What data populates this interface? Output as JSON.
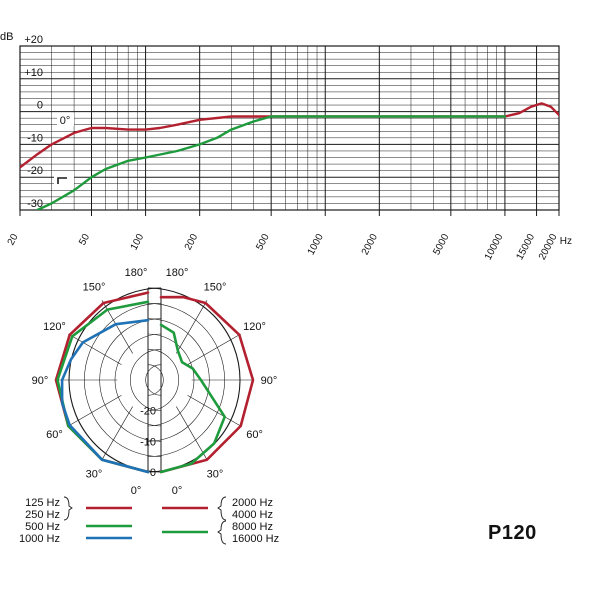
{
  "model": "P120",
  "colors": {
    "red": "#b3202f",
    "green": "#1e9b3c",
    "blue": "#1f72b5",
    "grid": "#1a1a1a"
  },
  "chart_data": [
    {
      "type": "line",
      "scale": "log-x",
      "xlim": [
        20,
        20000
      ],
      "ylim": [
        -30,
        20
      ],
      "yunit": "dB",
      "xunit": "Hz",
      "y_ticks": [
        {
          "value": 20,
          "label": "+20"
        },
        {
          "value": 10,
          "label": "+10"
        },
        {
          "value": 0,
          "label": "0"
        },
        {
          "value": -10,
          "label": "-10"
        },
        {
          "value": -20,
          "label": "-20"
        },
        {
          "value": -30,
          "label": "-30"
        }
      ],
      "x_ticks": [
        {
          "value": 20,
          "label": "20"
        },
        {
          "value": 50,
          "label": "50"
        },
        {
          "value": 100,
          "label": "100"
        },
        {
          "value": 200,
          "label": "200"
        },
        {
          "value": 500,
          "label": "500"
        },
        {
          "value": 1000,
          "label": "1000"
        },
        {
          "value": 2000,
          "label": "2000"
        },
        {
          "value": 5000,
          "label": "5000"
        },
        {
          "value": 10000,
          "label": "10000"
        },
        {
          "value": 15000,
          "label": "15000"
        },
        {
          "value": 20000,
          "label": "20000"
        }
      ],
      "angle_label": "0°",
      "grid": true,
      "series": [
        {
          "color": "red",
          "points": [
            [
              20,
              -17
            ],
            [
              25,
              -13
            ],
            [
              30,
              -10
            ],
            [
              40,
              -6.5
            ],
            [
              50,
              -5
            ],
            [
              60,
              -5
            ],
            [
              80,
              -5.5
            ],
            [
              100,
              -5.5
            ],
            [
              120,
              -5
            ],
            [
              150,
              -4
            ],
            [
              200,
              -2.5
            ],
            [
              300,
              -1.5
            ],
            [
              500,
              -1.5
            ],
            [
              1000,
              -1.5
            ],
            [
              2000,
              -1.5
            ],
            [
              5000,
              -1.5
            ],
            [
              10000,
              -1.5
            ],
            [
              12000,
              -0.5
            ],
            [
              14000,
              1.5
            ],
            [
              16000,
              2.5
            ],
            [
              18000,
              1.5
            ],
            [
              20000,
              -1
            ],
            [
              22000,
              -3
            ]
          ]
        },
        {
          "color": "green",
          "points": [
            [
              25,
              -30
            ],
            [
              30,
              -28
            ],
            [
              40,
              -24
            ],
            [
              50,
              -20
            ],
            [
              60,
              -17.5
            ],
            [
              80,
              -15
            ],
            [
              100,
              -14
            ],
            [
              150,
              -12
            ],
            [
              200,
              -10
            ],
            [
              250,
              -8
            ],
            [
              300,
              -5.5
            ],
            [
              400,
              -3
            ],
            [
              500,
              -1.5
            ],
            [
              1000,
              -1.5
            ],
            [
              2000,
              -1.5
            ],
            [
              5000,
              -1.5
            ],
            [
              10000,
              -1.5
            ]
          ]
        }
      ]
    },
    {
      "type": "polar",
      "radial_ticks": [
        {
          "value": -20,
          "label": "-20"
        },
        {
          "value": -10,
          "label": "-10"
        },
        {
          "value": 0,
          "label": "0"
        }
      ],
      "angle_labels_left": [
        "180°",
        "150°",
        "120°",
        "90°",
        "60°",
        "30°",
        "0°"
      ],
      "angle_labels_right": [
        "180°",
        "150°",
        "120°",
        "90°",
        "60°",
        "30°",
        "0°"
      ],
      "left_half": [
        {
          "color": "red",
          "points": [
            [
              0,
              0
            ],
            [
              30,
              0
            ],
            [
              60,
              0
            ],
            [
              90,
              0
            ],
            [
              120,
              -0.5
            ],
            [
              150,
              -1
            ],
            [
              180,
              -1.5
            ]
          ]
        },
        {
          "color": "green",
          "points": [
            [
              0,
              0
            ],
            [
              30,
              0
            ],
            [
              60,
              0
            ],
            [
              90,
              -0.5
            ],
            [
              120,
              -1.5
            ],
            [
              150,
              -3.5
            ],
            [
              180,
              -4.5
            ]
          ]
        },
        {
          "color": "blue",
          "points": [
            [
              0,
              0
            ],
            [
              30,
              0
            ],
            [
              60,
              -0.5
            ],
            [
              75,
              -1
            ],
            [
              90,
              -2
            ],
            [
              105,
              -4
            ],
            [
              120,
              -5.5
            ],
            [
              150,
              -9
            ],
            [
              180,
              -10.5
            ]
          ]
        }
      ],
      "right_half": [
        {
          "color": "red",
          "points": [
            [
              0,
              0
            ],
            [
              30,
              0
            ],
            [
              60,
              0
            ],
            [
              90,
              0
            ],
            [
              120,
              -0.5
            ],
            [
              150,
              -1
            ],
            [
              165,
              -2
            ],
            [
              180,
              -3
            ]
          ]
        },
        {
          "color": "green",
          "points": [
            [
              0,
              0
            ],
            [
              20,
              -1
            ],
            [
              40,
              -3
            ],
            [
              60,
              -6
            ],
            [
              90,
              -17
            ],
            [
              110,
              -19
            ],
            [
              130,
              -21
            ],
            [
              150,
              -19
            ],
            [
              165,
              -14
            ],
            [
              180,
              -12
            ]
          ]
        }
      ]
    }
  ],
  "legend": {
    "left": [
      {
        "labels": [
          "125 Hz",
          "250 Hz"
        ],
        "color": "red"
      },
      {
        "labels": [
          "500 Hz"
        ],
        "color": "green"
      },
      {
        "labels": [
          "1000 Hz"
        ],
        "color": "blue"
      }
    ],
    "right": [
      {
        "labels": [
          "2000 Hz",
          "4000 Hz"
        ],
        "color": "red"
      },
      {
        "labels": [
          "8000 Hz",
          "16000 Hz"
        ],
        "color": "green"
      }
    ]
  }
}
